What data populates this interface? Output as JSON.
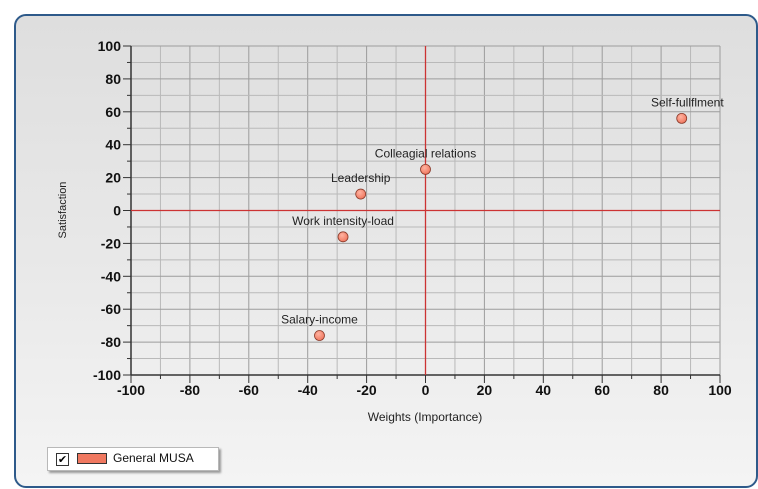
{
  "chart_data": {
    "type": "scatter",
    "xlabel": "Weights (Importance)",
    "ylabel": "Satisfaction",
    "xlim": [
      -100,
      100
    ],
    "ylim": [
      -100,
      100
    ],
    "x_ticks": [
      -100,
      -80,
      -60,
      -40,
      -20,
      0,
      20,
      40,
      60,
      80,
      100
    ],
    "y_ticks": [
      100,
      80,
      60,
      40,
      20,
      0,
      -20,
      -40,
      -60,
      -80,
      -100
    ],
    "grid": true,
    "axis_line_color": "#cc3333",
    "series": [
      {
        "name": "General MUSA",
        "color": "#f07860",
        "points": [
          {
            "label": "Self-fullflment",
            "x": 87,
            "y": 56
          },
          {
            "label": "Colleagial relations",
            "x": 0,
            "y": 25
          },
          {
            "label": "Leadership",
            "x": -22,
            "y": 10
          },
          {
            "label": "Work intensity-load",
            "x": -28,
            "y": -16
          },
          {
            "label": "Salary-income",
            "x": -36,
            "y": -76
          }
        ]
      }
    ]
  },
  "legend": {
    "checkbox_mark": "✔",
    "label": "General MUSA",
    "position": "bottom-left"
  }
}
